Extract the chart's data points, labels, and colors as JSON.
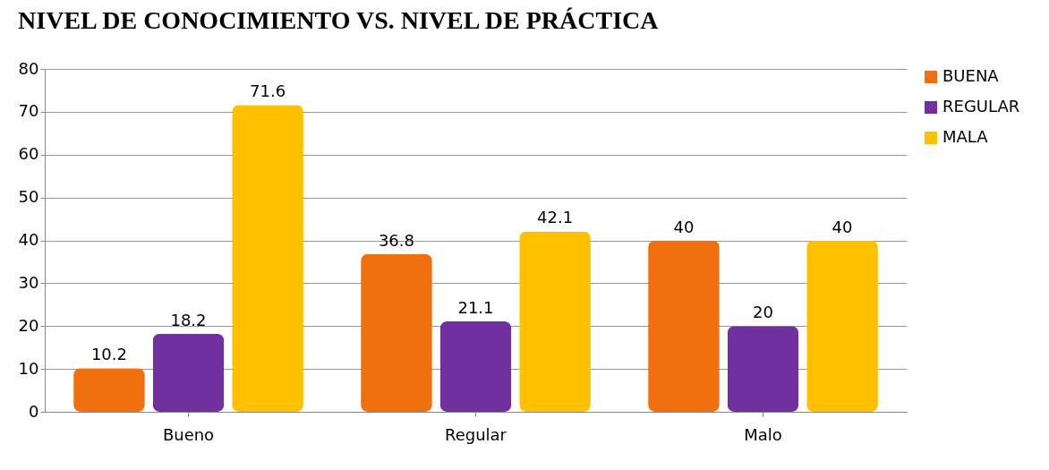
{
  "chart_data": {
    "type": "bar",
    "title": "NIVEL DE CONOCIMIENTO VS. NIVEL DE PRÁCTICA",
    "categories": [
      "Bueno",
      "Regular",
      "Malo"
    ],
    "series": [
      {
        "name": "BUENA",
        "color": "#f07010",
        "values": [
          10.2,
          36.8,
          40
        ]
      },
      {
        "name": "REGULAR",
        "color": "#7030a0",
        "values": [
          18.2,
          21.1,
          20
        ]
      },
      {
        "name": "MALA",
        "color": "#ffc000",
        "values": [
          71.6,
          42.1,
          40
        ]
      }
    ],
    "ylim": [
      0,
      80
    ],
    "yticks": [
      0,
      10,
      20,
      30,
      40,
      50,
      60,
      70,
      80
    ],
    "grid": true,
    "legend": "right",
    "data_labels": true
  }
}
